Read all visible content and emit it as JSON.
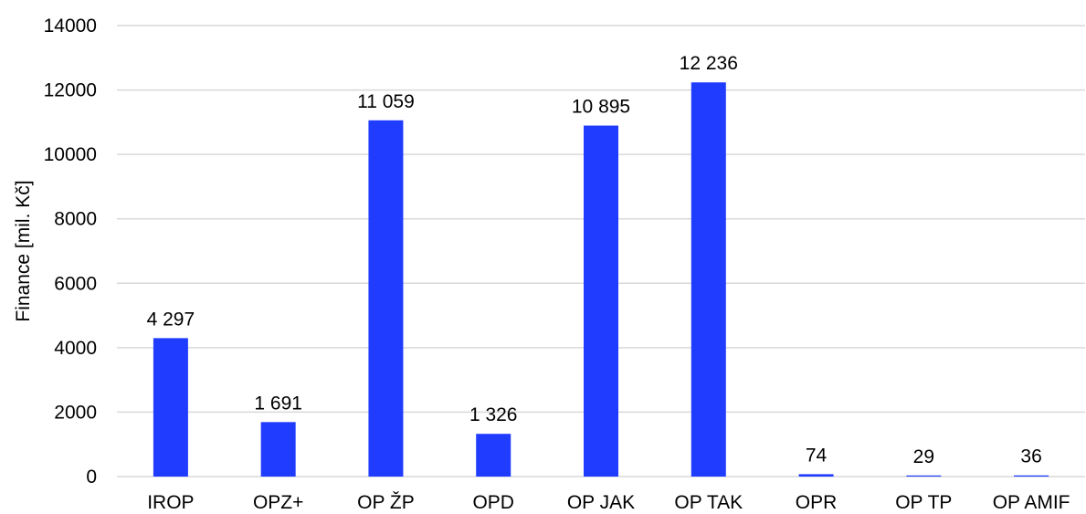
{
  "chart_data": {
    "type": "bar",
    "title": "",
    "xlabel": "",
    "ylabel": "Finance [mil. Kč]",
    "ylim": [
      0,
      14000
    ],
    "yticks": [
      0,
      2000,
      4000,
      6000,
      8000,
      10000,
      12000,
      14000
    ],
    "grid": true,
    "legend": "none",
    "bar_color": "#1f3cff",
    "categories": [
      "IROP",
      "OPZ+",
      "OP ŽP",
      "OPD",
      "OP JAK",
      "OP TAK",
      "OPR",
      "OP TP",
      "OP AMIF"
    ],
    "values": [
      4297,
      1691,
      11059,
      1326,
      10895,
      12236,
      74,
      29,
      36
    ],
    "data_labels": [
      "4 297",
      "1 691",
      "11 059",
      "1 326",
      "10 895",
      "12 236",
      "74",
      "29",
      "36"
    ]
  }
}
